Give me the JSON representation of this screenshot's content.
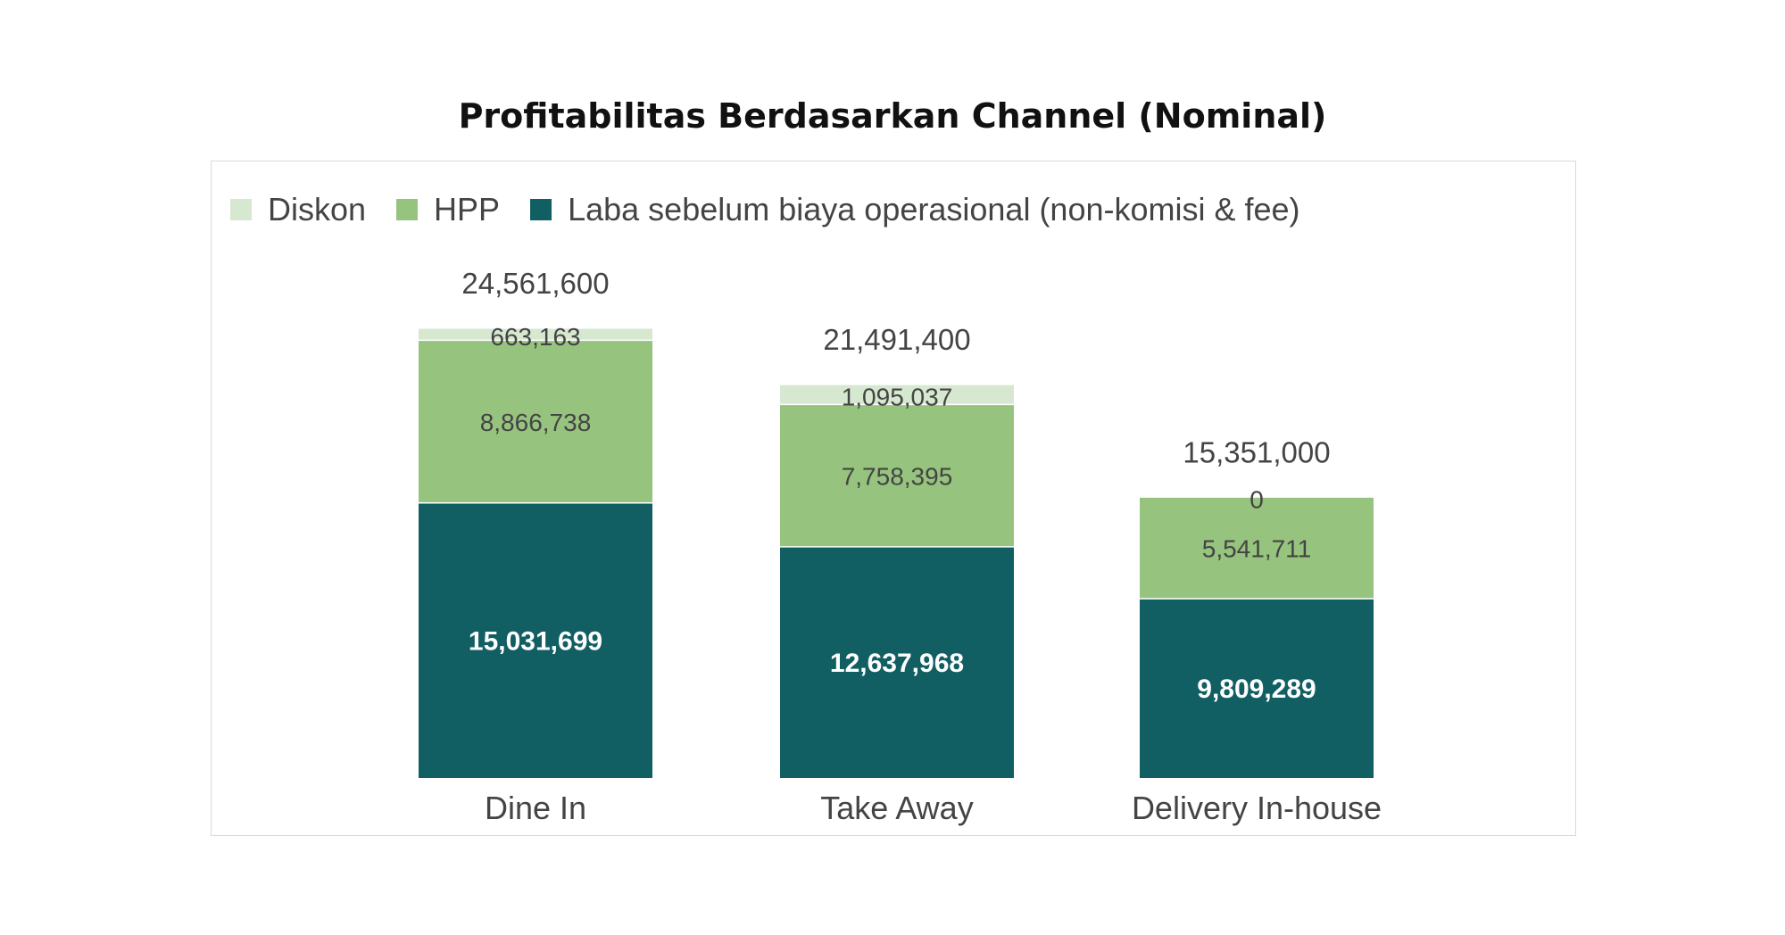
{
  "chart_data": {
    "type": "bar",
    "stacked": true,
    "title": "Profitabilitas Berdasarkan Channel (Nominal)",
    "xlabel": "",
    "ylabel": "",
    "ylim": [
      0,
      25000000
    ],
    "grid": false,
    "legend_position": "top-left",
    "categories": [
      "Dine In",
      "Take Away",
      "Delivery In-house"
    ],
    "series": [
      {
        "name": "Laba sebelum biaya operasional (non-komisi & fee)",
        "color": "#115e63",
        "label_color": "#ffffff",
        "label_bold": true,
        "values": [
          15031699,
          12637968,
          9809289
        ],
        "labels": [
          "15,031,699",
          "12,637,968",
          "9,809,289"
        ]
      },
      {
        "name": "HPP",
        "color": "#96c47e",
        "label_color": "#444444",
        "label_bold": false,
        "values": [
          8866738,
          7758395,
          5541711
        ],
        "labels": [
          "8,866,738",
          "7,758,395",
          "5,541,711"
        ]
      },
      {
        "name": "Diskon",
        "color": "#d6e9d0",
        "label_color": "#444444",
        "label_bold": false,
        "values": [
          663163,
          1095037,
          0
        ],
        "labels": [
          "663,163",
          "1,095,037",
          "0"
        ]
      }
    ],
    "totals": [
      24561600,
      21491400,
      15351000
    ],
    "total_labels": [
      "24,561,600",
      "21,491,400",
      "15,351,000"
    ],
    "legend_order": [
      "Diskon",
      "HPP",
      "Laba sebelum biaya operasional (non-komisi & fee)"
    ]
  }
}
